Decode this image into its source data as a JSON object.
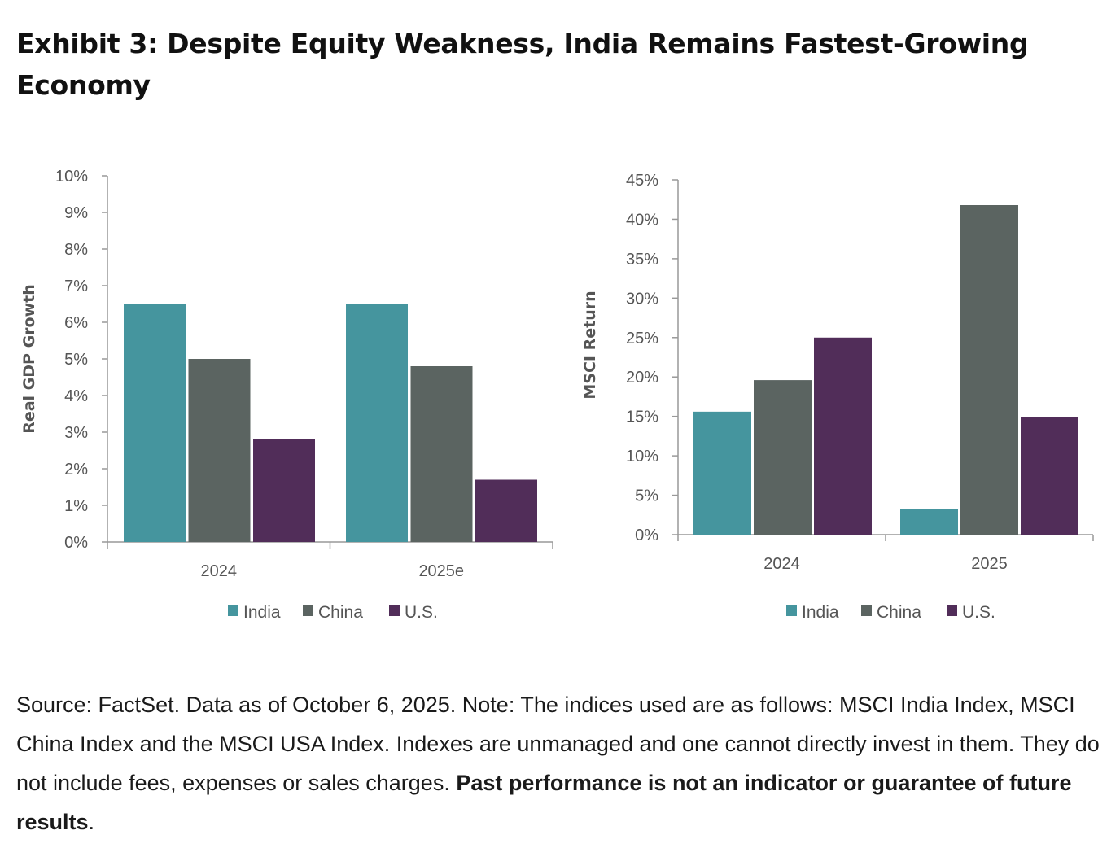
{
  "title": "Exhibit 3: Despite Equity Weakness, India Remains Fastest-Growing Economy",
  "colors": {
    "India": "#45959e",
    "China": "#5b6461",
    "U.S.": "#512d59",
    "axis": "#999999"
  },
  "chart_data": [
    {
      "type": "bar",
      "ylabel": "Real GDP Growth",
      "categories": [
        "2024",
        "2025e"
      ],
      "ylim": [
        0,
        10
      ],
      "yticks": [
        "0%",
        "1%",
        "2%",
        "3%",
        "4%",
        "5%",
        "6%",
        "7%",
        "8%",
        "9%",
        "10%"
      ],
      "series": [
        {
          "name": "India",
          "values": [
            6.5,
            6.5
          ]
        },
        {
          "name": "China",
          "values": [
            5.0,
            4.8
          ]
        },
        {
          "name": "U.S.",
          "values": [
            2.8,
            1.7
          ]
        }
      ],
      "legend": "bottom-center",
      "grid": false
    },
    {
      "type": "bar",
      "ylabel": "MSCI Return",
      "categories": [
        "2024",
        "2025"
      ],
      "ylim": [
        0,
        45
      ],
      "yticks": [
        "0%",
        "5%",
        "10%",
        "15%",
        "20%",
        "25%",
        "30%",
        "35%",
        "40%",
        "45%"
      ],
      "series": [
        {
          "name": "India",
          "values": [
            15.6,
            3.2
          ]
        },
        {
          "name": "China",
          "values": [
            19.6,
            41.8
          ]
        },
        {
          "name": "U.S.",
          "values": [
            25.0,
            14.9
          ]
        }
      ],
      "legend": "bottom-center",
      "grid": false
    }
  ],
  "note": {
    "text": "Source: FactSet. Data as of October 6, 2025. Note: The indices used are as follows: MSCI India Index, MSCI China Index and the MSCI USA Index. Indexes are unmanaged and one cannot directly invest in them. They do not include fees, expenses or sales charges. ",
    "bold": "Past performance is not an indicator or guarantee of future results",
    "end": "."
  }
}
